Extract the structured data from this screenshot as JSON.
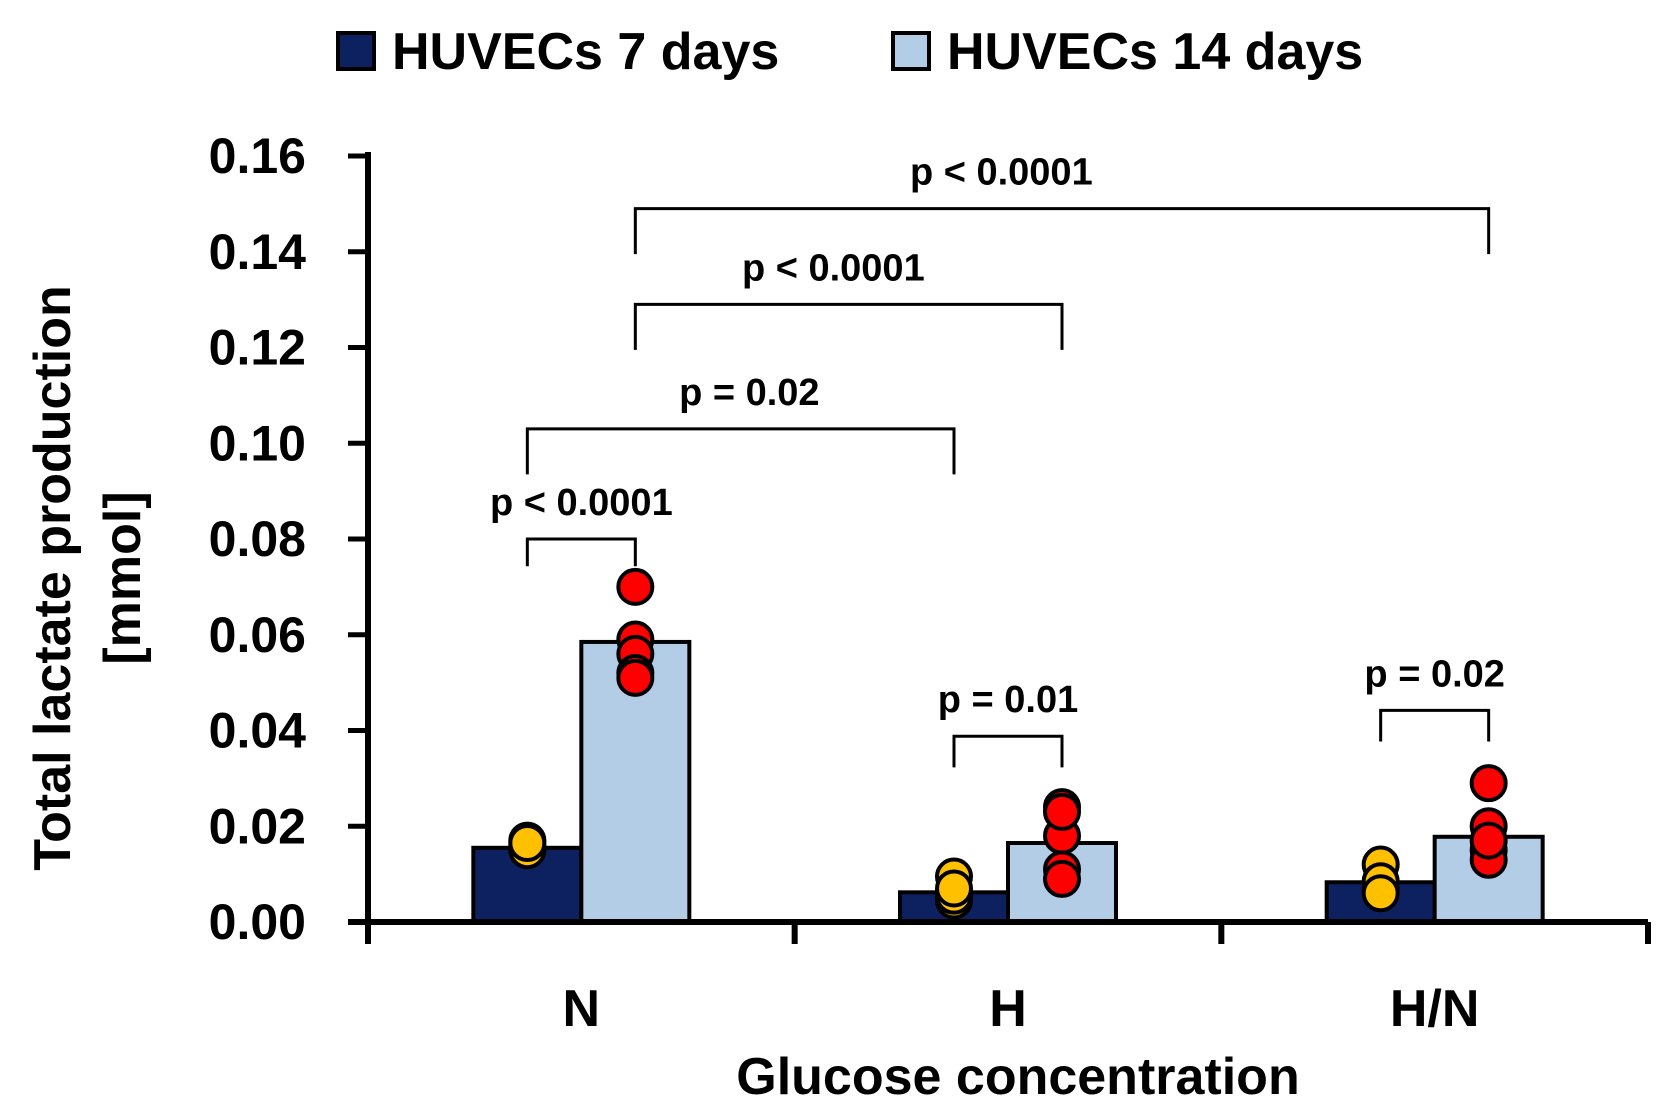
{
  "chart_data": {
    "type": "bar",
    "title": "",
    "xlabel": "Glucose concentration",
    "ylabel": "Total lactate production",
    "ylabel_unit": "[mmol]",
    "categories": [
      "N",
      "H",
      "H/N"
    ],
    "ylim": [
      0,
      0.16
    ],
    "yticks": [
      "0.00",
      "0.02",
      "0.04",
      "0.06",
      "0.08",
      "0.10",
      "0.12",
      "0.14",
      "0.16"
    ],
    "grid": false,
    "legend_position": "top",
    "series": [
      {
        "name": "HUVECs 7 days",
        "color": "#0d2160",
        "point_color": "#ffc000",
        "values": [
          0.0155,
          0.0062,
          0.0083
        ],
        "points": [
          [
            0.016,
            0.015,
            0.017,
            0.0165
          ],
          [
            0.0045,
            0.0095,
            0.0055,
            0.007
          ],
          [
            0.012,
            0.007,
            0.0085,
            0.006
          ]
        ]
      },
      {
        "name": "HUVECs 14 days",
        "color": "#b4cde6",
        "point_color": "#ff0000",
        "values": [
          0.0585,
          0.0165,
          0.0178
        ],
        "points": [
          [
            0.07,
            0.059,
            0.056,
            0.052,
            0.051
          ],
          [
            0.024,
            0.018,
            0.011,
            0.009,
            0.023
          ],
          [
            0.029,
            0.02,
            0.015,
            0.013,
            0.017
          ]
        ]
      }
    ],
    "annotations": [
      {
        "text": "p < 0.0001",
        "from": [
          0,
          0
        ],
        "to": [
          0,
          1
        ]
      },
      {
        "text": "p = 0.02",
        "from": [
          0,
          0
        ],
        "to": [
          1,
          0
        ]
      },
      {
        "text": "p < 0.0001",
        "from": [
          0,
          1
        ],
        "to": [
          1,
          1
        ]
      },
      {
        "text": "p < 0.0001",
        "from": [
          0,
          1
        ],
        "to": [
          2,
          1
        ]
      },
      {
        "text": "p = 0.01",
        "from": [
          1,
          0
        ],
        "to": [
          1,
          1
        ]
      },
      {
        "text": "p = 0.02",
        "from": [
          2,
          0
        ],
        "to": [
          2,
          1
        ]
      }
    ]
  }
}
